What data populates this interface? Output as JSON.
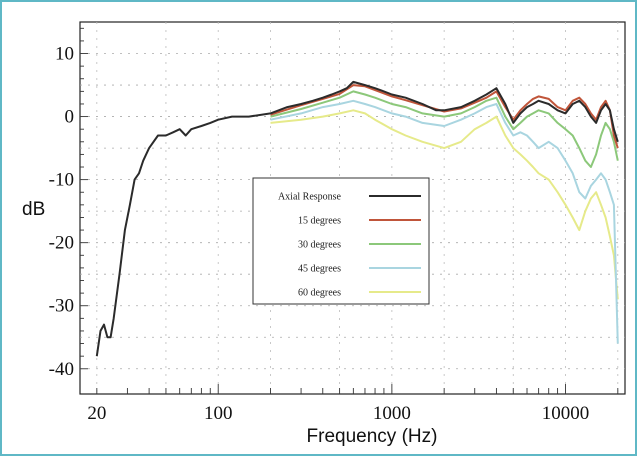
{
  "chart_data": {
    "type": "line",
    "xscale": "log",
    "xlabel": "Frequency (Hz)",
    "ylabel": "dB",
    "xlim": [
      16,
      22000
    ],
    "ylim": [
      -44,
      15
    ],
    "x_ticks": [
      {
        "value": 20,
        "label": "20"
      },
      {
        "value": 100,
        "label": "100"
      },
      {
        "value": 1000,
        "label": "1000"
      },
      {
        "value": 10000,
        "label": "10000"
      }
    ],
    "y_ticks": [
      {
        "value": 10,
        "label": "10"
      },
      {
        "value": 0,
        "label": "0"
      },
      {
        "value": -10,
        "label": "-10"
      },
      {
        "value": -20,
        "label": "-20"
      },
      {
        "value": -30,
        "label": "-30"
      },
      {
        "value": -40,
        "label": "-40"
      }
    ],
    "grid": "dotted",
    "legend_position": "center",
    "series": [
      {
        "name": "Axial Response",
        "color": "#2b2b2b",
        "points": [
          [
            20,
            -38
          ],
          [
            21,
            -34
          ],
          [
            22,
            -33
          ],
          [
            23,
            -35
          ],
          [
            24,
            -35
          ],
          [
            25,
            -32
          ],
          [
            27,
            -25
          ],
          [
            29,
            -18
          ],
          [
            31,
            -14
          ],
          [
            33,
            -10
          ],
          [
            35,
            -9
          ],
          [
            37,
            -7
          ],
          [
            40,
            -5
          ],
          [
            45,
            -3
          ],
          [
            50,
            -3
          ],
          [
            55,
            -2.5
          ],
          [
            60,
            -2
          ],
          [
            65,
            -3
          ],
          [
            70,
            -2
          ],
          [
            80,
            -1.5
          ],
          [
            90,
            -1
          ],
          [
            100,
            -0.5
          ],
          [
            120,
            0
          ],
          [
            150,
            0
          ],
          [
            200,
            0.5
          ],
          [
            250,
            1.5
          ],
          [
            300,
            2
          ],
          [
            350,
            2.5
          ],
          [
            400,
            3
          ],
          [
            450,
            3.5
          ],
          [
            500,
            4
          ],
          [
            550,
            4.5
          ],
          [
            600,
            5.5
          ],
          [
            700,
            5
          ],
          [
            800,
            4.5
          ],
          [
            900,
            4
          ],
          [
            1000,
            3.5
          ],
          [
            1200,
            3
          ],
          [
            1500,
            2
          ],
          [
            1800,
            1
          ],
          [
            2000,
            1
          ],
          [
            2500,
            1.5
          ],
          [
            3000,
            2.5
          ],
          [
            3500,
            3.5
          ],
          [
            4000,
            4.5
          ],
          [
            4500,
            2
          ],
          [
            5000,
            -1
          ],
          [
            5500,
            0.5
          ],
          [
            6000,
            1.5
          ],
          [
            6500,
            2
          ],
          [
            7000,
            2.5
          ],
          [
            8000,
            2
          ],
          [
            9000,
            1
          ],
          [
            10000,
            0.5
          ],
          [
            11000,
            2
          ],
          [
            12000,
            2.5
          ],
          [
            13000,
            1.5
          ],
          [
            14000,
            0
          ],
          [
            15000,
            -1
          ],
          [
            16000,
            1
          ],
          [
            17000,
            2
          ],
          [
            18000,
            1
          ],
          [
            19000,
            -2
          ],
          [
            20000,
            -4
          ]
        ]
      },
      {
        "name": "15 degrees",
        "color": "#c0553a",
        "points": [
          [
            200,
            0.3
          ],
          [
            300,
            1.8
          ],
          [
            400,
            2.8
          ],
          [
            500,
            3.6
          ],
          [
            600,
            5
          ],
          [
            700,
            4.8
          ],
          [
            800,
            4.2
          ],
          [
            1000,
            3.2
          ],
          [
            1200,
            2.6
          ],
          [
            1500,
            1.8
          ],
          [
            2000,
            0.8
          ],
          [
            2500,
            1.3
          ],
          [
            3000,
            2.2
          ],
          [
            3500,
            3
          ],
          [
            4000,
            4
          ],
          [
            4500,
            1.5
          ],
          [
            5000,
            -0.5
          ],
          [
            5500,
            1
          ],
          [
            6000,
            2
          ],
          [
            6500,
            2.8
          ],
          [
            7000,
            3.2
          ],
          [
            8000,
            2.8
          ],
          [
            9000,
            1.5
          ],
          [
            10000,
            1
          ],
          [
            11000,
            2.5
          ],
          [
            12000,
            3
          ],
          [
            13000,
            2
          ],
          [
            14000,
            0.5
          ],
          [
            15000,
            -0.5
          ],
          [
            16000,
            1.5
          ],
          [
            17000,
            2.5
          ],
          [
            18000,
            1
          ],
          [
            19000,
            -3
          ],
          [
            20000,
            -5
          ]
        ]
      },
      {
        "name": "30 degrees",
        "color": "#8cc87a",
        "points": [
          [
            200,
            0
          ],
          [
            300,
            1.2
          ],
          [
            400,
            2.2
          ],
          [
            500,
            3
          ],
          [
            600,
            4
          ],
          [
            700,
            3.5
          ],
          [
            800,
            3
          ],
          [
            1000,
            2
          ],
          [
            1200,
            1.5
          ],
          [
            1500,
            0.5
          ],
          [
            2000,
            0
          ],
          [
            2500,
            0.5
          ],
          [
            3000,
            1.5
          ],
          [
            3500,
            2.5
          ],
          [
            4000,
            3
          ],
          [
            4500,
            0
          ],
          [
            5000,
            -2
          ],
          [
            5500,
            -1
          ],
          [
            6000,
            0
          ],
          [
            6500,
            0.5
          ],
          [
            7000,
            1
          ],
          [
            8000,
            0.5
          ],
          [
            9000,
            -1
          ],
          [
            10000,
            -2
          ],
          [
            11000,
            -3
          ],
          [
            12000,
            -5
          ],
          [
            13000,
            -7
          ],
          [
            14000,
            -8
          ],
          [
            15000,
            -6
          ],
          [
            16000,
            -3
          ],
          [
            17000,
            -1
          ],
          [
            18000,
            -2
          ],
          [
            19000,
            -4
          ],
          [
            20000,
            -7
          ]
        ]
      },
      {
        "name": "45 degrees",
        "color": "#a9d5e0",
        "points": [
          [
            200,
            -0.5
          ],
          [
            300,
            0.5
          ],
          [
            400,
            1.5
          ],
          [
            500,
            2
          ],
          [
            600,
            2.5
          ],
          [
            700,
            2
          ],
          [
            800,
            1.5
          ],
          [
            1000,
            0.5
          ],
          [
            1200,
            0
          ],
          [
            1500,
            -1
          ],
          [
            2000,
            -1.5
          ],
          [
            2500,
            -0.5
          ],
          [
            3000,
            0.5
          ],
          [
            3500,
            1.5
          ],
          [
            4000,
            2
          ],
          [
            4500,
            -1
          ],
          [
            5000,
            -3
          ],
          [
            5500,
            -2.5
          ],
          [
            6000,
            -3
          ],
          [
            6500,
            -4
          ],
          [
            7000,
            -5
          ],
          [
            8000,
            -4
          ],
          [
            9000,
            -5
          ],
          [
            10000,
            -7
          ],
          [
            11000,
            -9
          ],
          [
            12000,
            -12
          ],
          [
            13000,
            -13
          ],
          [
            14000,
            -11
          ],
          [
            15000,
            -10
          ],
          [
            16000,
            -9
          ],
          [
            17000,
            -10
          ],
          [
            18000,
            -12
          ],
          [
            19000,
            -14
          ],
          [
            20000,
            -36
          ]
        ]
      },
      {
        "name": "60 degrees",
        "color": "#e6ea8a",
        "points": [
          [
            200,
            -1
          ],
          [
            300,
            -0.5
          ],
          [
            400,
            0
          ],
          [
            500,
            0.5
          ],
          [
            600,
            1
          ],
          [
            700,
            0.5
          ],
          [
            800,
            -0.5
          ],
          [
            1000,
            -2
          ],
          [
            1200,
            -3
          ],
          [
            1500,
            -4
          ],
          [
            2000,
            -5
          ],
          [
            2500,
            -4
          ],
          [
            3000,
            -2
          ],
          [
            3500,
            -1
          ],
          [
            4000,
            0
          ],
          [
            4500,
            -3
          ],
          [
            5000,
            -5
          ],
          [
            5500,
            -6
          ],
          [
            6000,
            -7
          ],
          [
            6500,
            -8
          ],
          [
            7000,
            -9
          ],
          [
            8000,
            -10
          ],
          [
            9000,
            -12
          ],
          [
            10000,
            -14
          ],
          [
            11000,
            -16
          ],
          [
            12000,
            -18
          ],
          [
            13000,
            -15
          ],
          [
            14000,
            -13
          ],
          [
            15000,
            -12
          ],
          [
            16000,
            -14
          ],
          [
            17000,
            -16
          ],
          [
            18000,
            -19
          ],
          [
            19000,
            -22
          ],
          [
            20000,
            -29
          ]
        ]
      }
    ]
  }
}
